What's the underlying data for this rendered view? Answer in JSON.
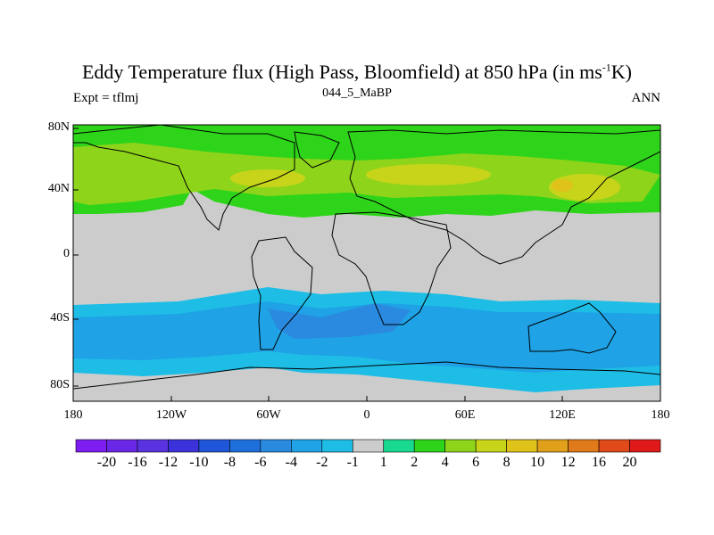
{
  "title": {
    "main_prefix": "Eddy Temperature flux (High Pass, Bloomfield) at 850 hPa (in ms",
    "superscript": "-1",
    "main_suffix": "K)"
  },
  "subtitle": {
    "left": "Expt = tflmj",
    "center": "044_5_MaBP",
    "right": "ANN"
  },
  "axes": {
    "y_ticks": [
      "80N",
      "40N",
      "0",
      "40S",
      "80S"
    ],
    "x_ticks": [
      "180",
      "120W",
      "60W",
      "0",
      "60E",
      "120E",
      "180"
    ]
  },
  "colorbar": {
    "labels": [
      "-20",
      "-16",
      "-12",
      "-10",
      "-8",
      "-6",
      "-4",
      "-2",
      "-1",
      "1",
      "2",
      "4",
      "6",
      "8",
      "10",
      "12",
      "16",
      "20"
    ],
    "colors": [
      "#7d1df0",
      "#6a28e6",
      "#5a32e0",
      "#3c32dc",
      "#1f55d8",
      "#1e6fdc",
      "#2a8ae0",
      "#1fa2e6",
      "#1ebde6",
      "#cccccc",
      "#19d890",
      "#2ed41a",
      "#8ed41a",
      "#c8d41a",
      "#e0c31a",
      "#e0a01a",
      "#e07a1a",
      "#e0491a",
      "#e01a1a"
    ]
  }
}
